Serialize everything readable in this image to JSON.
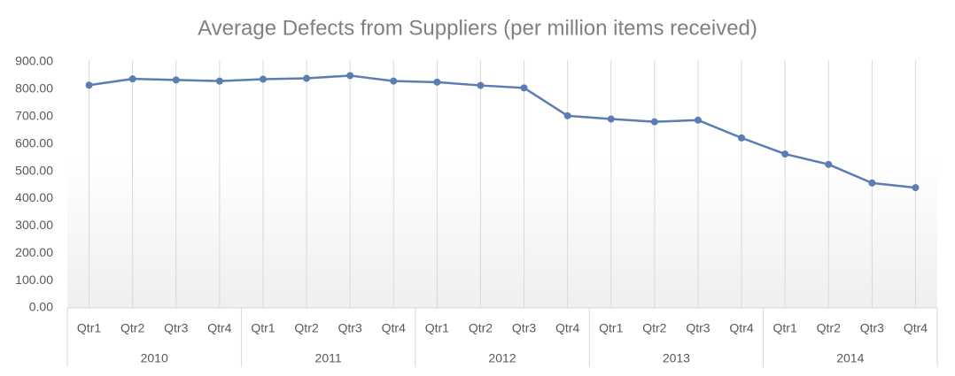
{
  "chart_data": {
    "type": "line",
    "title": "Average Defects from Suppliers (per million items received)",
    "categories": [
      "Qtr1",
      "Qtr2",
      "Qtr3",
      "Qtr4",
      "Qtr1",
      "Qtr2",
      "Qtr3",
      "Qtr4",
      "Qtr1",
      "Qtr2",
      "Qtr3",
      "Qtr4",
      "Qtr1",
      "Qtr2",
      "Qtr3",
      "Qtr4",
      "Qtr1",
      "Qtr2",
      "Qtr3",
      "Qtr4"
    ],
    "groups": [
      "2010",
      "2011",
      "2012",
      "2013",
      "2014"
    ],
    "series": [
      {
        "name": "Average Defects",
        "color": "#5b7db3",
        "values": [
          815,
          838,
          834,
          830,
          837,
          840,
          850,
          830,
          826,
          814,
          805,
          703,
          691,
          681,
          687,
          622,
          563,
          525,
          457,
          440
        ]
      }
    ],
    "ylim": [
      0,
      900
    ],
    "yticks": [
      {
        "value": 0,
        "label": "0.00"
      },
      {
        "value": 100,
        "label": "100.00"
      },
      {
        "value": 200,
        "label": "200.00"
      },
      {
        "value": 300,
        "label": "300.00"
      },
      {
        "value": 400,
        "label": "400.00"
      },
      {
        "value": 500,
        "label": "500.00"
      },
      {
        "value": 600,
        "label": "600.00"
      },
      {
        "value": 700,
        "label": "700.00"
      },
      {
        "value": 800,
        "label": "800.00"
      },
      {
        "value": 900,
        "label": "900.00"
      }
    ],
    "grid": false
  }
}
